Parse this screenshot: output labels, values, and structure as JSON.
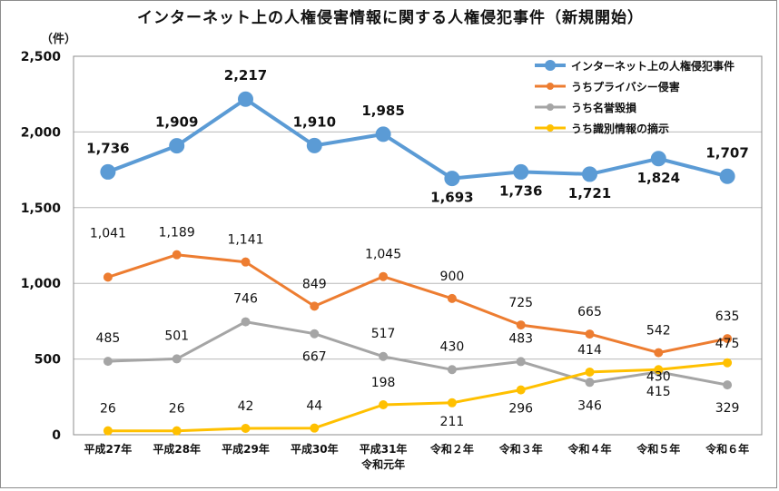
{
  "chart_data": {
    "type": "line",
    "title": "インターネット上の人権侵害情報に関する人権侵犯事件（新規開始）",
    "ylabel": "（件）",
    "xlabel": "",
    "ylim": [
      0,
      2500
    ],
    "yticks": [
      0,
      500,
      1000,
      1500,
      2000,
      2500
    ],
    "ytick_labels": [
      "0",
      "500",
      "1,000",
      "1,500",
      "2,000",
      "2,500"
    ],
    "categories": [
      "平成27年",
      "平成28年",
      "平成29年",
      "平成30年",
      "平成31年\n令和元年",
      "令和２年",
      "令和３年",
      "令和４年",
      "令和５年",
      "令和６年"
    ],
    "grid": true,
    "legend_position": "top-right",
    "series": [
      {
        "name": "インターネット上の人権侵犯事件",
        "color": "#5B9BD5",
        "values": [
          1736,
          1909,
          2217,
          1910,
          1985,
          1693,
          1736,
          1721,
          1824,
          1707
        ],
        "labels": [
          "1,736",
          "1,909",
          "2,217",
          "1,910",
          "1,985",
          "1,693",
          "1,736",
          "1,721",
          "1,824",
          "1,707"
        ]
      },
      {
        "name": "うちプライバシー侵害",
        "color": "#ED7D31",
        "values": [
          1041,
          1189,
          1141,
          849,
          1045,
          900,
          725,
          665,
          542,
          635
        ],
        "labels": [
          "1,041",
          "1,189",
          "1,141",
          "849",
          "1,045",
          "900",
          "725",
          "665",
          "542",
          "635"
        ]
      },
      {
        "name": "うち名誉毀損",
        "color": "#A5A5A5",
        "values": [
          485,
          501,
          746,
          667,
          517,
          430,
          483,
          346,
          415,
          329
        ],
        "labels": [
          "485",
          "501",
          "746",
          "667",
          "517",
          "430",
          "483",
          "346",
          "415",
          "329"
        ]
      },
      {
        "name": "うち識別情報の摘示",
        "color": "#FFC000",
        "values": [
          26,
          26,
          42,
          44,
          198,
          211,
          296,
          414,
          430,
          475
        ],
        "labels": [
          "26",
          "26",
          "42",
          "44",
          "198",
          "211",
          "296",
          "414",
          "430",
          "475"
        ]
      }
    ]
  }
}
